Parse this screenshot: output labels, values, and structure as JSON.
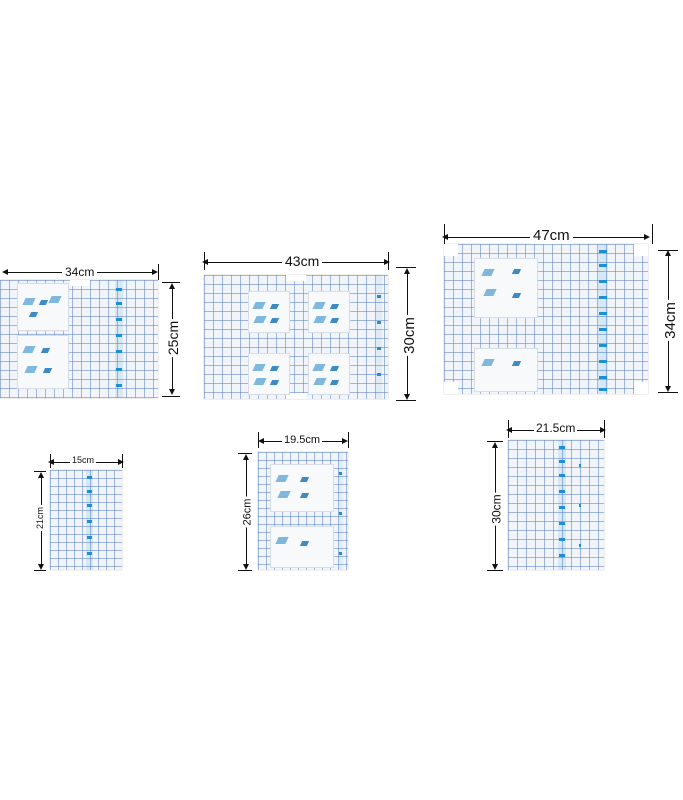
{
  "product_sizes": [
    {
      "width": "34cm",
      "height": "25cm"
    },
    {
      "width": "43cm",
      "height": "30cm"
    },
    {
      "width": "47cm",
      "height": "34cm"
    },
    {
      "width": "15cm",
      "height": "21cm"
    },
    {
      "width": "19.5cm",
      "height": "26cm"
    },
    {
      "width": "21.5cm",
      "height": "30cm"
    }
  ],
  "colors": {
    "grid": "#5c84c4",
    "strip": "#1d8fd6",
    "sheet": "#f1f4f8"
  }
}
